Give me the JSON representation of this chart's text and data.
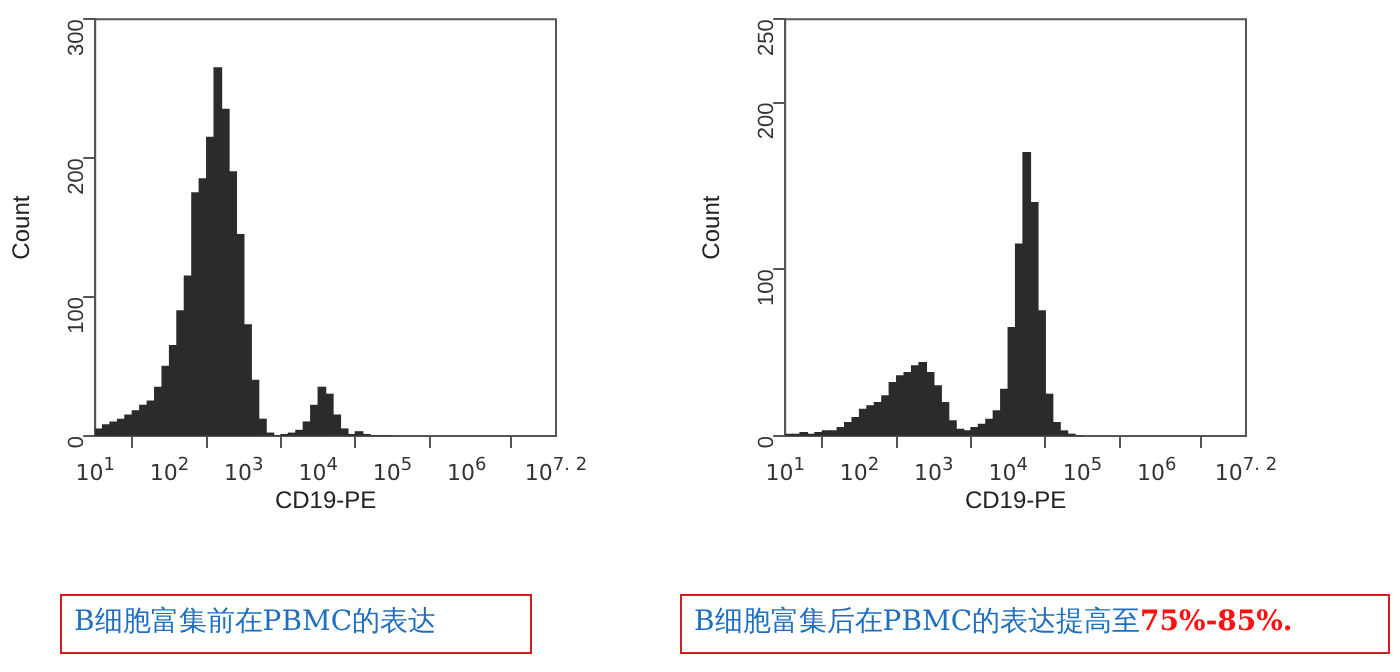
{
  "chart_data": [
    {
      "type": "histogram",
      "xlabel": "CD19-PE",
      "ylabel": "Count",
      "log": "x",
      "color": "#2b2b2b",
      "bins": [
        10,
        12.6,
        15.8,
        20,
        25.1,
        31.6,
        39.8,
        50.1,
        63.1,
        79.4,
        100,
        126,
        158,
        200,
        251,
        316,
        398,
        501,
        631,
        794,
        1000,
        1260,
        1580,
        2000,
        2510,
        3160,
        3980,
        5010,
        6310,
        7940,
        10000,
        12600,
        15800,
        20000,
        25100,
        31600,
        39800,
        50100,
        63100,
        79400,
        100000
      ],
      "values": [
        5,
        8,
        10,
        12,
        15,
        18,
        22,
        25,
        35,
        50,
        65,
        90,
        115,
        175,
        185,
        215,
        265,
        235,
        190,
        145,
        80,
        40,
        12,
        2,
        0,
        1,
        2,
        4,
        10,
        22,
        35,
        30,
        15,
        5,
        1,
        3,
        1,
        0,
        0,
        0
      ],
      "xlim": [
        10,
        15848932
      ],
      "xticks": [
        {
          "value": 10,
          "label": "10$^{1}$"
        },
        {
          "value": 100,
          "label": "10$^{2}$"
        },
        {
          "value": 1000,
          "label": "10$^{3}$"
        },
        {
          "value": 10000,
          "label": "10$^{4}$"
        },
        {
          "value": 100000,
          "label": "10$^{5}$"
        },
        {
          "value": 1000000,
          "label": "10$^{6}$"
        },
        {
          "value": 15848932,
          "label": "10$^{7. 2}$"
        }
      ],
      "ylim": [
        0,
        300
      ],
      "yticks": [
        0,
        100,
        200,
        300
      ],
      "grid": false,
      "legend": false,
      "annotations": [
        "B细胞富集前在PBMC的表达"
      ]
    },
    {
      "type": "histogram",
      "xlabel": "CD19-PE",
      "ylabel": "Count",
      "log": "x",
      "color": "#2b2b2b",
      "bins": [
        10,
        12.6,
        15.8,
        20,
        25.1,
        31.6,
        39.8,
        50.1,
        63.1,
        79.4,
        100,
        126,
        158,
        200,
        251,
        316,
        398,
        501,
        631,
        794,
        1000,
        1260,
        1580,
        2000,
        2510,
        3160,
        3980,
        5010,
        6310,
        7940,
        10000,
        12600,
        15800,
        20000,
        25100,
        31600,
        39800,
        50100,
        63100,
        79400,
        100000
      ],
      "values": [
        1,
        1,
        2,
        1,
        2,
        3,
        3,
        5,
        8,
        11,
        16,
        18,
        20,
        24,
        32,
        36,
        38,
        42,
        44,
        38,
        30,
        20,
        9,
        4,
        3,
        5,
        7,
        10,
        15,
        28,
        65,
        115,
        170,
        140,
        75,
        25,
        8,
        3,
        1,
        0
      ],
      "xlim": [
        10,
        15848932
      ],
      "xticks": [
        {
          "value": 10,
          "label": "10$^{1}$"
        },
        {
          "value": 100,
          "label": "10$^{2}$"
        },
        {
          "value": 1000,
          "label": "10$^{3}$"
        },
        {
          "value": 10000,
          "label": "10$^{4}$"
        },
        {
          "value": 100000,
          "label": "10$^{5}$"
        },
        {
          "value": 1000000,
          "label": "10$^{6}$"
        },
        {
          "value": 15848932,
          "label": "10$^{7. 2}$"
        }
      ],
      "ylim": [
        0,
        250
      ],
      "yticks": [
        0,
        100,
        200,
        250
      ],
      "grid": false,
      "legend": false,
      "annotations": [
        "B细胞富集后在PBMC的表达提高至",
        "75%-85%."
      ]
    }
  ]
}
